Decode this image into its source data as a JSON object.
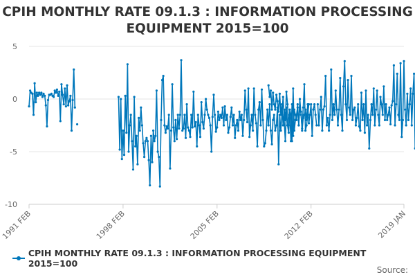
{
  "chart_data": {
    "type": "line",
    "title": "CPIH MONTHLY RATE 09.1.3 : INFORMATION PROCESSING EQUIPMENT 2015=100",
    "title_line1": "CPIH MONTHLY RATE 09.1.3 : INFORMATION PROCESSING",
    "title_line2": "EQUIPMENT 2015=100",
    "xlabel": "",
    "ylabel": "",
    "x_start": "1991 FEB",
    "x_end": "2019 JAN",
    "x_tick_labels": [
      "1991 FEB",
      "1998 FEB",
      "2005 FEB",
      "2012 FEB",
      "2019 JAN"
    ],
    "y_tick_values": [
      5,
      0,
      -5,
      -10
    ],
    "y_tick_labels": [
      "5",
      "0",
      "-5",
      "-10"
    ],
    "ylim": [
      -10,
      5
    ],
    "grid": "horizontal",
    "legend_position": "bottom",
    "series": [
      {
        "name": "CPIH MONTHLY RATE 09.1.3 : INFORMATION PROCESSING EQUIPMENT 2015=100",
        "color": "#0077bb",
        "segments": [
          {
            "start": "1991-02",
            "values": [
              -0.7,
              0.8,
              0.6,
              0.5,
              -1.5,
              1.5,
              -0.3,
              0.6,
              0.3,
              0.6,
              0.4,
              0.6,
              0.2,
              0.5,
              0.3,
              -0.6,
              -2.6,
              -0.1,
              0.4,
              0.4,
              0.5,
              0.3,
              0.2,
              0.8,
              0.6,
              0.9,
              0.3,
              0.7,
              -2.1,
              1.4,
              0.4,
              -0.5,
              1.0,
              -0.7,
              1.3,
              -0.6,
              -0.2,
              0.3,
              -3.0,
              -0.1,
              2.8,
              -0.8
            ]
          },
          {
            "start": "1994-09",
            "values": [
              -2.4
            ]
          },
          {
            "start": "1997-10",
            "values": [
              0.2,
              -4.8,
              0.0,
              -5.7,
              -3.0,
              -5.3,
              0.3,
              -3.2,
              3.3,
              -5.0,
              -2.5,
              -1.5,
              -4.0,
              -6.7,
              0.2,
              -4.5,
              -3.5,
              -6.2,
              -1.8,
              -3.0,
              -0.8,
              -2.5,
              -4.2,
              -5.5,
              -4.0,
              -3.7,
              -4.0,
              -5.8,
              -8.2,
              -3.5,
              -6.0,
              -3.0,
              -4.0,
              -3.5,
              0.8,
              -5.0,
              -5.5,
              -8.3,
              -2.0,
              1.8,
              2.2,
              -2.5,
              -3.2,
              -2.6,
              -2.8,
              -1.5,
              -6.6,
              -3.0,
              1.4,
              -2.7,
              -4.0,
              -2.0,
              -3.8,
              -1.5,
              -2.8,
              -1.5,
              3.7,
              -3.0,
              -2.8,
              -1.5,
              -3.7,
              -0.5,
              -2.7,
              -3.0,
              -3.6,
              -1.5,
              -2.7,
              0.7,
              -2.6,
              -2.2,
              -4.5,
              -1.5,
              -2.5,
              -3.6,
              -0.3,
              -2.2,
              -2.8,
              -1.5,
              0.0,
              -1.0,
              -1.5,
              -1.8,
              -2.5,
              -5.0,
              -1.7,
              0.4,
              -1.5,
              -3.1,
              -2.7,
              -1.2,
              -2.0,
              -1.5,
              -1.8,
              -0.8,
              -2.5,
              -0.7,
              -2.0,
              -1.5,
              -3.2,
              -2.7,
              -1.7,
              -0.8,
              -2.5,
              -1.5,
              -3.7,
              -2.5,
              -2.0,
              -3.0,
              -1.2,
              -2.0,
              -1.5,
              -3.5,
              -2.0,
              0.8,
              -1.0,
              -2.2,
              1.0,
              -3.6,
              -2.5,
              -1.5,
              -3.0,
              1.0,
              -1.5,
              -2.3,
              -4.5,
              -1.0,
              -0.3,
              -2.5,
              0.9,
              -2.0,
              -4.5,
              -4.2,
              -3.0,
              -1.0,
              -2.5,
              -0.5,
              -3.0,
              -4.3,
              -2.0,
              -1.5,
              -3.0,
              -2.5,
              -0.8,
              -6.2,
              -1.5,
              -3.0,
              -1.5,
              0.2,
              -2.0,
              -4.0,
              -0.8,
              -2.5,
              -3.2,
              -1.0,
              -1.5,
              -4.0,
              1.0,
              -3.0,
              -2.0,
              -1.5,
              -0.8,
              -2.5,
              0.0,
              -1.5,
              -2.8,
              -0.8,
              1.4,
              -3.0,
              -2.5,
              -1.5,
              -0.5
            ]
          },
          {
            "start": "2008-12",
            "values": [
              1.3,
              0.2,
              0.8,
              -1.0,
              0.6,
              -0.5,
              -1.0,
              0.4,
              -0.2,
              -1.2,
              0.5,
              -1.5,
              -0.5,
              -2.5,
              -1.0,
              -2.0,
              0.7,
              -0.5,
              -2.5,
              -1.5,
              -4.0,
              -0.5,
              -3.5,
              -1.0,
              -1.5,
              -2.0,
              -0.5,
              -2.5,
              -0.8,
              -1.2,
              -3.0,
              -1.8,
              -1.5,
              -1.0,
              -2.0,
              -0.5,
              -2.3,
              -1.5,
              -0.5,
              -3.5,
              -1.0,
              -0.5,
              -1.5,
              -2.5
            ]
          },
          {
            "start": "2012-08",
            "values": [
              -0.5,
              -2.5,
              -1.0,
              0.2,
              -3.0,
              -1.0,
              -0.7,
              2.2,
              -2.5,
              -1.8,
              -3.0,
              -1.5,
              2.8,
              -2.0,
              -0.5,
              -1.5,
              0.8,
              -1.0,
              -2.5,
              -1.0,
              2.0,
              -1.5,
              -3.0,
              1.2,
              3.6,
              -0.5,
              -2.0,
              1.8,
              -0.8,
              -1.5,
              2.2,
              -2.0,
              -1.0,
              -0.8,
              -2.5,
              -1.8,
              -0.5,
              -2.6,
              -3.0,
              0.6,
              -2.0,
              -0.5,
              -3.2,
              0.8,
              -2.5,
              -1.5,
              -4.7,
              -2.0,
              -0.5,
              -1.5,
              1.0,
              -2.5,
              -1.0,
              0.8,
              -1.5,
              -2.5,
              0.2,
              -0.5,
              -1.5,
              1.2,
              -2.0,
              -0.5,
              -2.0,
              -1.5,
              -0.8,
              -2.4,
              -0.6,
              -0.2,
              3.2,
              -2.5,
              -0.5,
              2.4,
              -1.5,
              -2.0,
              3.4,
              -3.6,
              -2.0,
              3.6,
              -1.0,
              -2.5,
              0.5,
              -2.0,
              -0.5,
              1.0,
              -2.5,
              0.5,
              2.4,
              -4.7,
              -1.0,
              1.8,
              2.0,
              -2.5,
              3.7,
              -3.0,
              0.2
            ]
          }
        ]
      }
    ]
  },
  "legend": {
    "label": "CPIH MONTHLY RATE 09.1.3 : INFORMATION PROCESSING EQUIPMENT 2015=100"
  },
  "source": {
    "label": "Source:"
  }
}
